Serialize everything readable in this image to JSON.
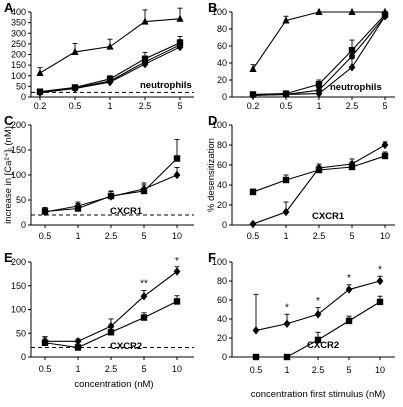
{
  "chart_data": [
    {
      "id": "A",
      "panel_label": "A",
      "type": "line",
      "title": "",
      "xlabel": "",
      "ylabel": "",
      "categories": [
        "0.2",
        "0.5",
        "1",
        "2.5",
        "5"
      ],
      "ylim": [
        0,
        400
      ],
      "yticks": [
        0,
        50,
        100,
        150,
        200,
        250,
        300,
        350,
        400
      ],
      "inline_label": "neutrophils",
      "baseline": 22,
      "series": [
        {
          "marker": "triangle",
          "values": [
            113,
            212,
            237,
            355,
            368
          ],
          "errors": [
            25,
            40,
            35,
            55,
            50
          ]
        },
        {
          "marker": "square",
          "values": [
            25,
            45,
            85,
            180,
            255
          ],
          "errors": [
            5,
            10,
            15,
            30,
            30
          ]
        },
        {
          "marker": "diamond",
          "values": [
            20,
            40,
            70,
            155,
            235
          ],
          "errors": [
            5,
            8,
            12,
            25,
            25
          ]
        },
        {
          "marker": "circle",
          "values": [
            22,
            42,
            75,
            165,
            245
          ],
          "errors": [
            5,
            8,
            12,
            25,
            25
          ]
        }
      ],
      "annotations": []
    },
    {
      "id": "B",
      "panel_label": "B",
      "type": "line",
      "title": "",
      "xlabel": "",
      "ylabel": "",
      "categories": [
        "0.2",
        "0.5",
        "1",
        "2.5",
        "5"
      ],
      "ylim": [
        0,
        100
      ],
      "yticks": [
        0,
        20,
        40,
        60,
        80,
        100
      ],
      "inline_label": "neutrophils",
      "series": [
        {
          "marker": "triangle",
          "values": [
            33,
            90,
            100,
            100,
            100
          ],
          "errors": [
            5,
            5,
            0,
            0,
            0
          ]
        },
        {
          "marker": "square",
          "values": [
            3,
            4,
            15,
            55,
            97
          ],
          "errors": [
            2,
            2,
            5,
            12,
            3
          ]
        },
        {
          "marker": "diamond",
          "values": [
            2,
            3,
            4,
            35,
            95
          ],
          "errors": [
            1,
            1,
            2,
            10,
            3
          ]
        },
        {
          "marker": "circle",
          "values": [
            2,
            3,
            8,
            48,
            95
          ],
          "errors": [
            1,
            1,
            3,
            10,
            3
          ]
        }
      ],
      "annotations": []
    },
    {
      "id": "C",
      "panel_label": "C",
      "type": "line",
      "title": "",
      "xlabel": "",
      "ylabel": "increase in [Ca²⁺]ᵢ (nM)",
      "categories": [
        "0.5",
        "1",
        "2.5",
        "5",
        "10"
      ],
      "ylim": [
        0,
        200
      ],
      "yticks": [
        0,
        50,
        100,
        150,
        200
      ],
      "inline_label": "CXCR1",
      "baseline": 20,
      "series": [
        {
          "marker": "square",
          "values": [
            27,
            33,
            58,
            68,
            133
          ],
          "errors": [
            8,
            10,
            10,
            12,
            38
          ]
        },
        {
          "marker": "diamond",
          "values": [
            26,
            38,
            57,
            72,
            100
          ],
          "errors": [
            8,
            8,
            10,
            12,
            15
          ]
        }
      ],
      "annotations": []
    },
    {
      "id": "D",
      "panel_label": "D",
      "type": "line",
      "title": "",
      "xlabel": "",
      "ylabel": "% desensitization",
      "categories": [
        "0.5",
        "1",
        "2.5",
        "5",
        "10"
      ],
      "ylim": [
        0,
        100
      ],
      "yticks": [
        0,
        20,
        40,
        60,
        80,
        100
      ],
      "inline_label": "CXCR1",
      "series": [
        {
          "marker": "square",
          "values": [
            33,
            45,
            55,
            58,
            69
          ],
          "errors": [
            3,
            5,
            4,
            5,
            4
          ]
        },
        {
          "marker": "diamond",
          "values": [
            1,
            13,
            57,
            61,
            80
          ],
          "errors": [
            1,
            10,
            4,
            5,
            3
          ]
        }
      ],
      "annotations": []
    },
    {
      "id": "E",
      "panel_label": "E",
      "type": "line",
      "title": "",
      "xlabel": "concentration (nM)",
      "ylabel": "",
      "categories": [
        "0.5",
        "1",
        "2.5",
        "5",
        "10"
      ],
      "ylim": [
        0,
        200
      ],
      "yticks": [
        0,
        50,
        100,
        150,
        200
      ],
      "inline_label": "CXCR2",
      "baseline": 20,
      "series": [
        {
          "marker": "square",
          "values": [
            30,
            20,
            52,
            83,
            117
          ],
          "errors": [
            10,
            6,
            10,
            10,
            12
          ]
        },
        {
          "marker": "diamond",
          "values": [
            33,
            33,
            65,
            128,
            180
          ],
          "errors": [
            10,
            5,
            15,
            12,
            10
          ]
        }
      ],
      "annotations": [
        {
          "category": "5",
          "text": "**",
          "y": 148
        },
        {
          "category": "10",
          "text": "*",
          "y": 196
        }
      ]
    },
    {
      "id": "F",
      "panel_label": "F",
      "type": "line",
      "title": "",
      "xlabel": "concentration first stimulus (nM)",
      "ylabel": "",
      "categories": [
        "0.5",
        "1",
        "2.5",
        "5",
        "10"
      ],
      "ylim": [
        0,
        100
      ],
      "yticks": [
        0,
        20,
        40,
        60,
        80,
        100
      ],
      "inline_label": "CXCR2",
      "series": [
        {
          "marker": "square",
          "values": [
            0,
            0,
            18,
            38,
            58
          ],
          "errors": [
            0,
            0,
            8,
            5,
            6
          ]
        },
        {
          "marker": "diamond",
          "values": [
            28,
            35,
            45,
            71,
            80
          ],
          "errors": [
            38,
            10,
            7,
            5,
            5
          ]
        }
      ],
      "annotations": [
        {
          "category": "1",
          "text": "*",
          "y": 49
        },
        {
          "category": "2.5",
          "text": "*",
          "y": 56
        },
        {
          "category": "5",
          "text": "*",
          "y": 80
        },
        {
          "category": "10",
          "text": "*",
          "y": 89
        }
      ]
    }
  ]
}
